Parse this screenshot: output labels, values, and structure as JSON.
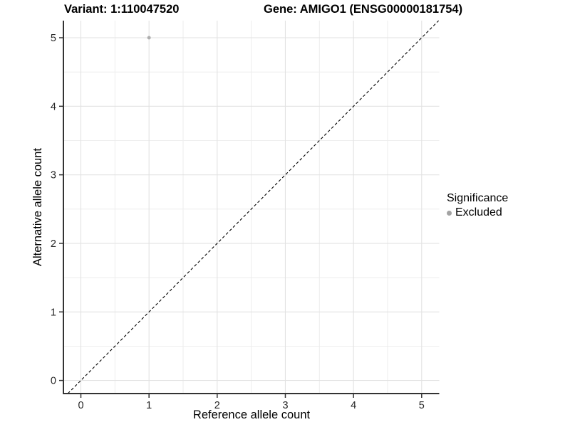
{
  "figure": {
    "title_left": "Variant: 1:110047520",
    "title_right": "Gene: AMIGO1 (ENSG00000181754)",
    "background": "#ffffff"
  },
  "chart_data": {
    "type": "scatter",
    "title": "Variant: 1:110047520 — Gene: AMIGO1 (ENSG00000181754)",
    "xlabel": "Reference allele count",
    "ylabel": "Alternative allele count",
    "xlim": [
      -0.26,
      5.26
    ],
    "ylim": [
      -0.19,
      5.25
    ],
    "x_ticks": [
      0,
      1,
      2,
      3,
      4,
      5
    ],
    "y_ticks": [
      0,
      1,
      2,
      3,
      4,
      5
    ],
    "grid": "on",
    "minor_grid_step": 0.5,
    "series": [
      {
        "name": "Excluded",
        "color": "#aeaeae",
        "points": [
          {
            "x": 1,
            "y": 5
          }
        ]
      }
    ],
    "reference_line": {
      "type": "identity",
      "style": "dashed",
      "color": "#000000"
    },
    "legend": {
      "title": "Significance",
      "position": "right",
      "items": [
        {
          "label": "Excluded",
          "color": "#a3a3a3"
        }
      ]
    },
    "colors": {
      "axis_line": "#333333",
      "tick_mark": "#333333",
      "tick_label": "#262626",
      "grid_major": "#e2e2e2",
      "grid_minor": "#ececec"
    }
  }
}
